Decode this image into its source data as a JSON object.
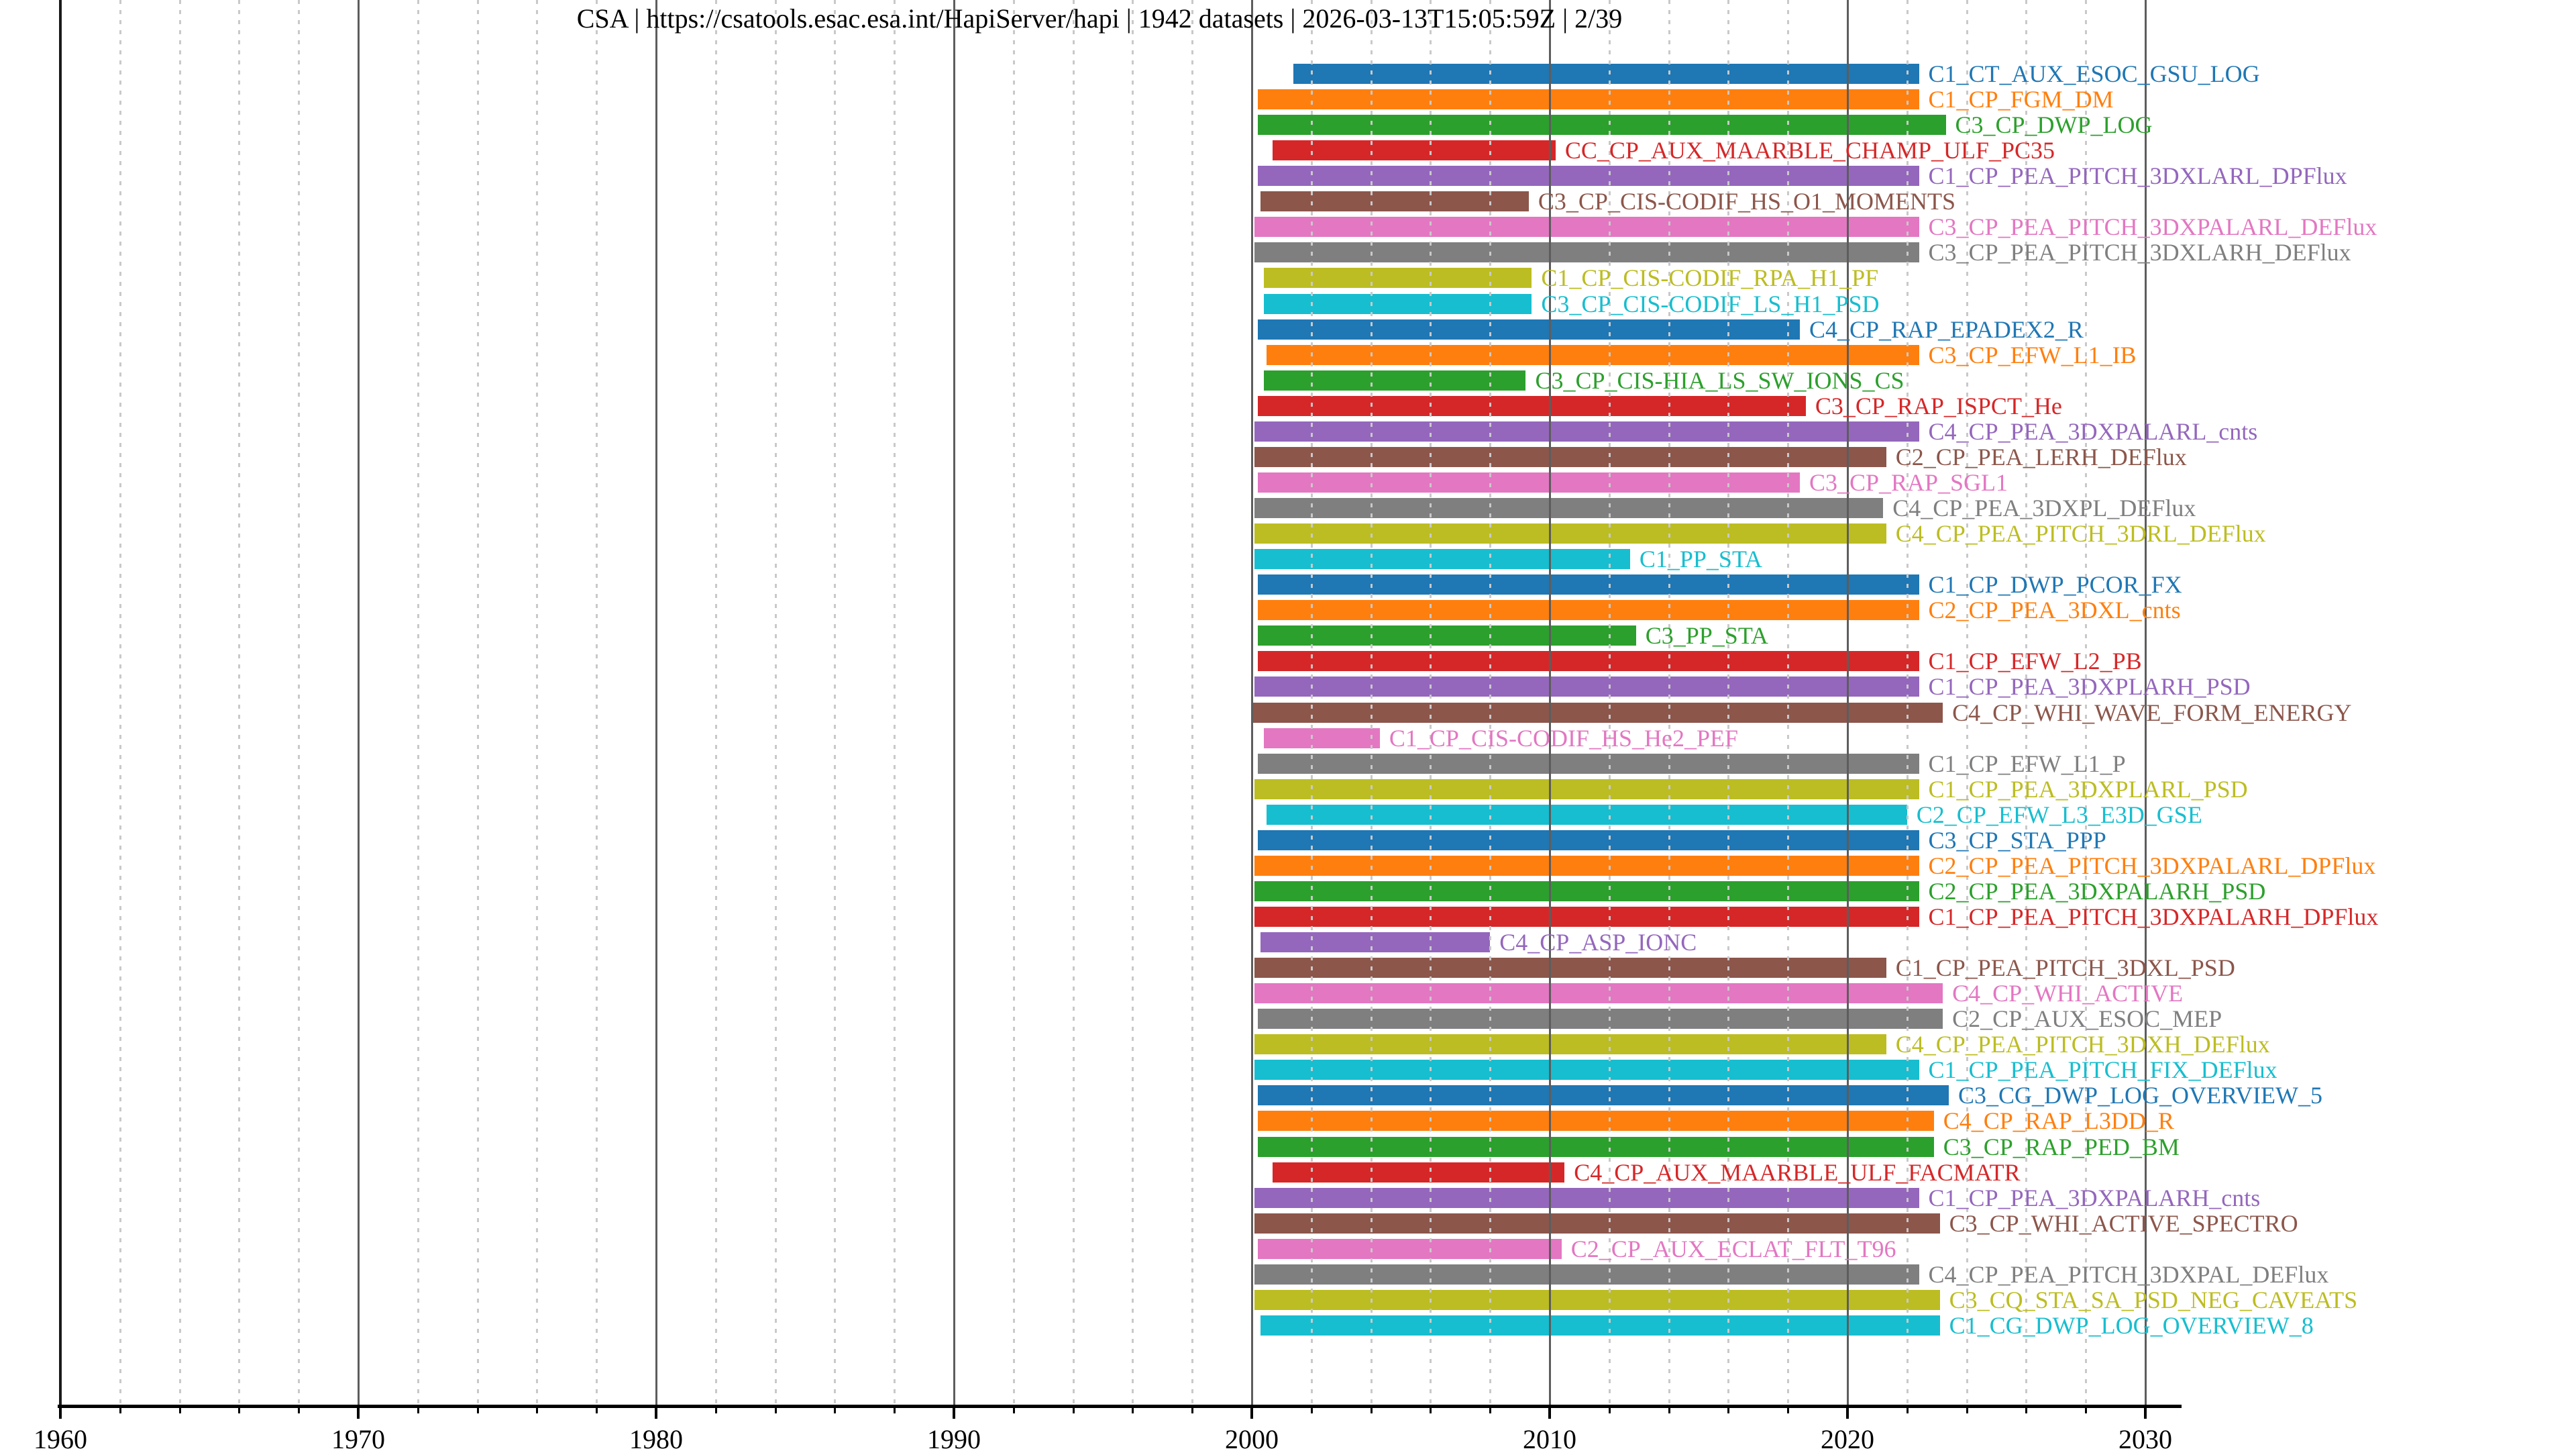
{
  "title": "CSA | https://csatools.esac.esa.int/HapiServer/hapi | 1942 datasets | 2026-03-13T15:05:59Z | 2/39",
  "colors": {
    "background": "#ffffff",
    "axis": "#000000",
    "grid_major": "#5d5d5d",
    "grid_minor": "#c9c9c9",
    "tab10": [
      "#1f77b4",
      "#ff7f0e",
      "#2ca02c",
      "#d62728",
      "#9467bd",
      "#8c564b",
      "#e377c2",
      "#7f7f7f",
      "#bcbd22",
      "#17becf"
    ]
  },
  "chart_data": {
    "type": "bar",
    "subtype": "horizontal-gantt-timeline",
    "title": "CSA | https://csatools.esac.esa.int/HapiServer/hapi | 1942 datasets | 2026-03-13T15:05:59Z | 2/39",
    "xlabel": "",
    "ylabel": "",
    "xlim": [
      1960,
      2031.3
    ],
    "x_ticks": [
      1960,
      1970,
      1980,
      1990,
      2000,
      2010,
      2020,
      2030
    ],
    "x_minor_tick_interval": 2,
    "grid": {
      "major_solid_decades": true,
      "minor_dashed_2yr": true,
      "drawn_above_bars": true
    },
    "legend": "none",
    "bar_label_position": "right-of-bar-end",
    "series": [
      {
        "label": "C1_CT_AUX_ESOC_GSU_LOG",
        "color": "#1f77b4",
        "start": 2001.4,
        "end": 2022.4
      },
      {
        "label": "C1_CP_FGM_DM",
        "color": "#ff7f0e",
        "start": 2000.2,
        "end": 2022.4
      },
      {
        "label": "C3_CP_DWP_LOG",
        "color": "#2ca02c",
        "start": 2000.2,
        "end": 2023.3
      },
      {
        "label": "CC_CP_AUX_MAARBLE_CHAMP_ULF_PC35",
        "color": "#d62728",
        "start": 2000.7,
        "end": 2010.2
      },
      {
        "label": "C1_CP_PEA_PITCH_3DXLARL_DPFlux",
        "color": "#9467bd",
        "start": 2000.2,
        "end": 2022.4
      },
      {
        "label": "C3_CP_CIS-CODIF_HS_O1_MOMENTS",
        "color": "#8c564b",
        "start": 2000.3,
        "end": 2009.3
      },
      {
        "label": "C3_CP_PEA_PITCH_3DXPALARL_DEFlux",
        "color": "#e377c2",
        "start": 2000.1,
        "end": 2022.4
      },
      {
        "label": "C3_CP_PEA_PITCH_3DXLARH_DEFlux",
        "color": "#7f7f7f",
        "start": 2000.1,
        "end": 2022.4
      },
      {
        "label": "C1_CP_CIS-CODIF_RPA_H1_PF",
        "color": "#bcbd22",
        "start": 2000.4,
        "end": 2009.4
      },
      {
        "label": "C3_CP_CIS-CODIF_LS_H1_PSD",
        "color": "#17becf",
        "start": 2000.4,
        "end": 2009.4
      },
      {
        "label": "C4_CP_RAP_EPADEX2_R",
        "color": "#1f77b4",
        "start": 2000.2,
        "end": 2018.4
      },
      {
        "label": "C3_CP_EFW_L1_IB",
        "color": "#ff7f0e",
        "start": 2000.5,
        "end": 2022.4
      },
      {
        "label": "C3_CP_CIS-HIA_LS_SW_IONS_CS",
        "color": "#2ca02c",
        "start": 2000.4,
        "end": 2009.2
      },
      {
        "label": "C3_CP_RAP_ISPCT_He",
        "color": "#d62728",
        "start": 2000.2,
        "end": 2018.6
      },
      {
        "label": "C4_CP_PEA_3DXPALARL_cnts",
        "color": "#9467bd",
        "start": 2000.1,
        "end": 2022.4
      },
      {
        "label": "C2_CP_PEA_LERH_DEFlux",
        "color": "#8c564b",
        "start": 2000.1,
        "end": 2021.3
      },
      {
        "label": "C3_CP_RAP_SGL1",
        "color": "#e377c2",
        "start": 2000.2,
        "end": 2018.4
      },
      {
        "label": "C4_CP_PEA_3DXPL_DEFlux",
        "color": "#7f7f7f",
        "start": 2000.1,
        "end": 2021.2
      },
      {
        "label": "C4_CP_PEA_PITCH_3DRL_DEFlux",
        "color": "#bcbd22",
        "start": 2000.1,
        "end": 2021.3
      },
      {
        "label": "C1_PP_STA",
        "color": "#17becf",
        "start": 2000.1,
        "end": 2012.7
      },
      {
        "label": "C1_CP_DWP_PCOR_FX",
        "color": "#1f77b4",
        "start": 2000.2,
        "end": 2022.4
      },
      {
        "label": "C2_CP_PEA_3DXL_cnts",
        "color": "#ff7f0e",
        "start": 2000.2,
        "end": 2022.4
      },
      {
        "label": "C3_PP_STA",
        "color": "#2ca02c",
        "start": 2000.2,
        "end": 2012.9
      },
      {
        "label": "C1_CP_EFW_L2_PB",
        "color": "#d62728",
        "start": 2000.2,
        "end": 2022.4
      },
      {
        "label": "C1_CP_PEA_3DXPLARH_PSD",
        "color": "#9467bd",
        "start": 2000.1,
        "end": 2022.4
      },
      {
        "label": "C4_CP_WHI_WAVE_FORM_ENERGY",
        "color": "#8c564b",
        "start": 2000.0,
        "end": 2023.2
      },
      {
        "label": "C1_CP_CIS-CODIF_HS_He2_PEF",
        "color": "#e377c2",
        "start": 2000.4,
        "end": 2004.3
      },
      {
        "label": "C1_CP_EFW_L1_P",
        "color": "#7f7f7f",
        "start": 2000.2,
        "end": 2022.4
      },
      {
        "label": "C1_CP_PEA_3DXPLARL_PSD",
        "color": "#bcbd22",
        "start": 2000.1,
        "end": 2022.4
      },
      {
        "label": "C2_CP_EFW_L3_E3D_GSE",
        "color": "#17becf",
        "start": 2000.5,
        "end": 2022.0
      },
      {
        "label": "C3_CP_STA_PPP",
        "color": "#1f77b4",
        "start": 2000.2,
        "end": 2022.4
      },
      {
        "label": "C2_CP_PEA_PITCH_3DXPALARL_DPFlux",
        "color": "#ff7f0e",
        "start": 2000.1,
        "end": 2022.4
      },
      {
        "label": "C2_CP_PEA_3DXPALARH_PSD",
        "color": "#2ca02c",
        "start": 2000.1,
        "end": 2022.4
      },
      {
        "label": "C1_CP_PEA_PITCH_3DXPALARH_DPFlux",
        "color": "#d62728",
        "start": 2000.1,
        "end": 2022.4
      },
      {
        "label": "C4_CP_ASP_IONC",
        "color": "#9467bd",
        "start": 2000.3,
        "end": 2008.0
      },
      {
        "label": "C1_CP_PEA_PITCH_3DXL_PSD",
        "color": "#8c564b",
        "start": 2000.1,
        "end": 2021.3
      },
      {
        "label": "C4_CP_WHI_ACTIVE",
        "color": "#e377c2",
        "start": 2000.1,
        "end": 2023.2
      },
      {
        "label": "C2_CP_AUX_ESOC_MEP",
        "color": "#7f7f7f",
        "start": 2000.2,
        "end": 2023.2
      },
      {
        "label": "C4_CP_PEA_PITCH_3DXH_DEFlux",
        "color": "#bcbd22",
        "start": 2000.1,
        "end": 2021.3
      },
      {
        "label": "C1_CP_PEA_PITCH_FIX_DEFlux",
        "color": "#17becf",
        "start": 2000.1,
        "end": 2022.4
      },
      {
        "label": "C3_CG_DWP_LOG_OVERVIEW_5",
        "color": "#1f77b4",
        "start": 2000.2,
        "end": 2023.4
      },
      {
        "label": "C4_CP_RAP_L3DD_R",
        "color": "#ff7f0e",
        "start": 2000.2,
        "end": 2022.9
      },
      {
        "label": "C3_CP_RAP_PED_BM",
        "color": "#2ca02c",
        "start": 2000.2,
        "end": 2022.9
      },
      {
        "label": "C4_CP_AUX_MAARBLE_ULF_FACMATR",
        "color": "#d62728",
        "start": 2000.7,
        "end": 2010.5
      },
      {
        "label": "C1_CP_PEA_3DXPALARH_cnts",
        "color": "#9467bd",
        "start": 2000.1,
        "end": 2022.4
      },
      {
        "label": "C3_CP_WHI_ACTIVE_SPECTRO",
        "color": "#8c564b",
        "start": 2000.1,
        "end": 2023.1
      },
      {
        "label": "C2_CP_AUX_ECLAT_FLT_T96",
        "color": "#e377c2",
        "start": 2000.2,
        "end": 2010.4
      },
      {
        "label": "C4_CP_PEA_PITCH_3DXPAL_DEFlux",
        "color": "#7f7f7f",
        "start": 2000.1,
        "end": 2022.4
      },
      {
        "label": "C3_CQ_STA_SA_PSD_NEG_CAVEATS",
        "color": "#bcbd22",
        "start": 2000.1,
        "end": 2023.1
      },
      {
        "label": "C1_CG_DWP_LOG_OVERVIEW_8",
        "color": "#17becf",
        "start": 2000.3,
        "end": 2023.1
      }
    ]
  }
}
